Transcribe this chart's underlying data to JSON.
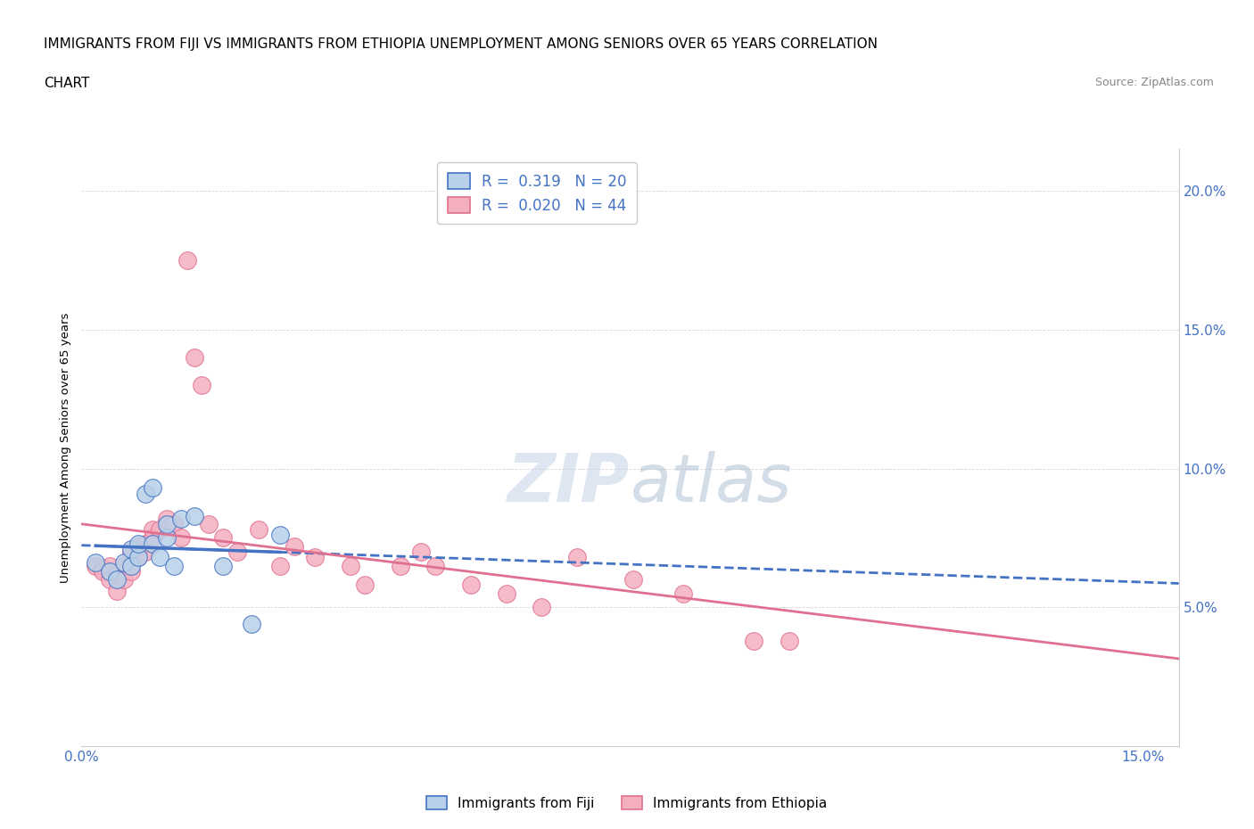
{
  "title_line1": "IMMIGRANTS FROM FIJI VS IMMIGRANTS FROM ETHIOPIA UNEMPLOYMENT AMONG SENIORS OVER 65 YEARS CORRELATION",
  "title_line2": "CHART",
  "source": "Source: ZipAtlas.com",
  "ylabel": "Unemployment Among Seniors over 65 years",
  "xlim": [
    0.0,
    0.155
  ],
  "ylim": [
    0.0,
    0.215
  ],
  "xtick_positions": [
    0.0,
    0.025,
    0.05,
    0.075,
    0.1,
    0.125,
    0.15
  ],
  "xticklabels": [
    "0.0%",
    "",
    "",
    "",
    "",
    "",
    "15.0%"
  ],
  "ytick_positions": [
    0.0,
    0.05,
    0.1,
    0.15,
    0.2
  ],
  "yticklabels": [
    "",
    "5.0%",
    "10.0%",
    "15.0%",
    "20.0%"
  ],
  "fiji_color": "#b8d0e8",
  "fiji_edge_color": "#4472c4",
  "ethiopia_color": "#f5b0c0",
  "ethiopia_edge_color": "#e07090",
  "fiji_line_color": "#4472c4",
  "ethiopia_line_color": "#e07090",
  "fiji_R": 0.319,
  "fiji_N": 20,
  "ethiopia_R": 0.02,
  "ethiopia_N": 44,
  "watermark_part1": "ZIP",
  "watermark_part2": "atlas",
  "fiji_x": [
    0.002,
    0.004,
    0.005,
    0.006,
    0.007,
    0.007,
    0.008,
    0.008,
    0.009,
    0.01,
    0.01,
    0.011,
    0.012,
    0.012,
    0.013,
    0.014,
    0.016,
    0.02,
    0.024,
    0.028
  ],
  "fiji_y": [
    0.066,
    0.063,
    0.06,
    0.066,
    0.065,
    0.071,
    0.068,
    0.073,
    0.091,
    0.093,
    0.073,
    0.068,
    0.075,
    0.08,
    0.065,
    0.082,
    0.083,
    0.065,
    0.044,
    0.076
  ],
  "ethiopia_x": [
    0.002,
    0.003,
    0.003,
    0.004,
    0.004,
    0.005,
    0.005,
    0.006,
    0.006,
    0.007,
    0.007,
    0.008,
    0.008,
    0.009,
    0.009,
    0.01,
    0.01,
    0.011,
    0.012,
    0.013,
    0.014,
    0.015,
    0.016,
    0.017,
    0.018,
    0.02,
    0.022,
    0.025,
    0.028,
    0.03,
    0.033,
    0.038,
    0.04,
    0.045,
    0.048,
    0.05,
    0.055,
    0.06,
    0.065,
    0.07,
    0.078,
    0.085,
    0.095,
    0.1
  ],
  "ethiopia_y": [
    0.065,
    0.064,
    0.063,
    0.065,
    0.06,
    0.062,
    0.056,
    0.065,
    0.06,
    0.063,
    0.07,
    0.068,
    0.072,
    0.073,
    0.07,
    0.075,
    0.078,
    0.078,
    0.082,
    0.08,
    0.075,
    0.175,
    0.14,
    0.13,
    0.08,
    0.075,
    0.07,
    0.078,
    0.065,
    0.072,
    0.068,
    0.065,
    0.058,
    0.065,
    0.07,
    0.065,
    0.058,
    0.055,
    0.05,
    0.068,
    0.06,
    0.055,
    0.038,
    0.038
  ]
}
